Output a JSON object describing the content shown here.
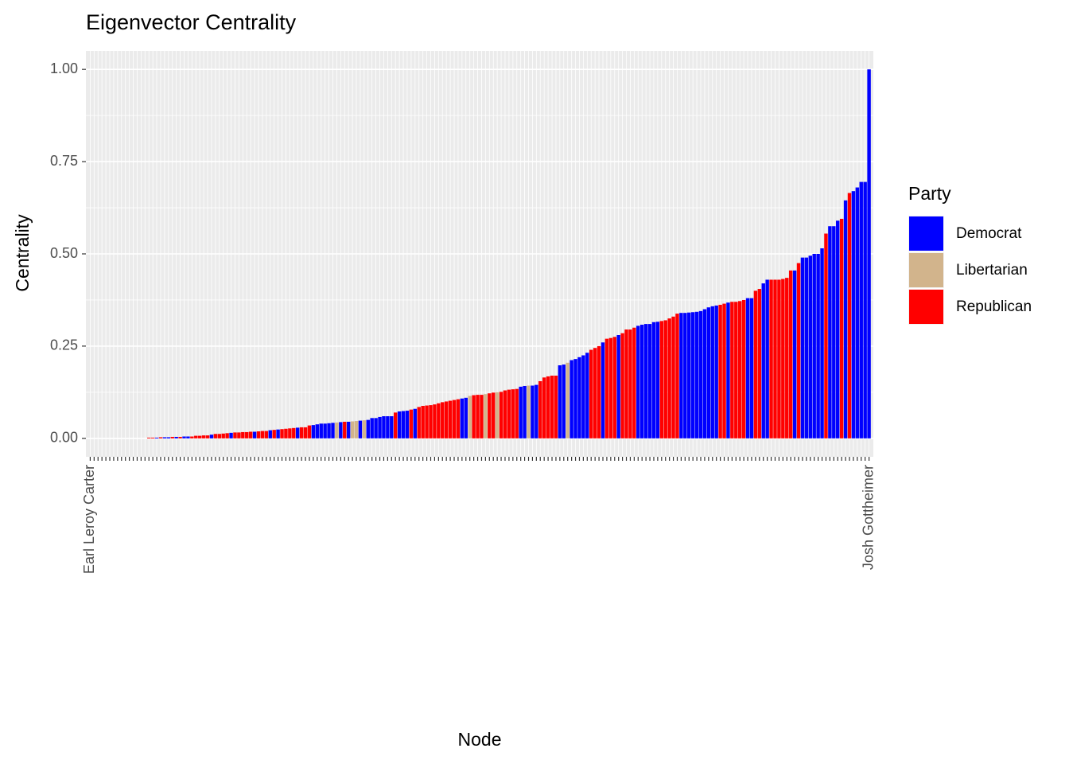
{
  "chart_data": {
    "type": "bar",
    "title": "Eigenvector Centrality",
    "x_label": "Node",
    "y_label": "Centrality",
    "legend_title": "Party",
    "legend": [
      {
        "name": "Democrat",
        "color": "#0000FF"
      },
      {
        "name": "Libertarian",
        "color": "#D2B48C"
      },
      {
        "name": "Republican",
        "color": "#FF0000"
      }
    ],
    "categories": [
      "Earl Leroy Carter",
      null,
      null,
      null,
      null,
      null,
      null,
      null,
      null,
      null,
      null,
      null,
      null,
      null,
      null,
      null,
      null,
      null,
      null,
      null,
      null,
      null,
      null,
      null,
      null,
      null,
      null,
      null,
      null,
      null,
      null,
      null,
      null,
      null,
      null,
      null,
      null,
      null,
      null,
      null,
      null,
      null,
      null,
      null,
      null,
      null,
      null,
      null,
      null,
      null,
      null,
      null,
      null,
      null,
      null,
      null,
      null,
      null,
      null,
      null,
      null,
      null,
      null,
      null,
      null,
      null,
      null,
      null,
      null,
      null,
      null,
      null,
      null,
      null,
      null,
      null,
      null,
      null,
      null,
      null,
      null,
      null,
      null,
      null,
      null,
      null,
      null,
      null,
      null,
      null,
      null,
      null,
      null,
      null,
      null,
      null,
      null,
      null,
      null,
      null,
      null,
      null,
      null,
      null,
      null,
      null,
      null,
      null,
      null,
      null,
      null,
      null,
      null,
      null,
      null,
      null,
      null,
      null,
      null,
      null,
      null,
      null,
      null,
      null,
      null,
      null,
      null,
      null,
      null,
      null,
      null,
      null,
      null,
      null,
      null,
      null,
      null,
      null,
      null,
      null,
      null,
      null,
      null,
      null,
      null,
      null,
      null,
      null,
      null,
      null,
      null,
      null,
      null,
      null,
      null,
      null,
      null,
      null,
      null,
      null,
      null,
      null,
      null,
      null,
      null,
      null,
      null,
      null,
      null,
      null,
      null,
      null,
      null,
      null,
      null,
      null,
      null,
      null,
      null,
      null,
      null,
      null,
      null,
      null,
      null,
      null,
      null,
      null,
      null,
      null,
      null,
      null,
      null,
      null,
      null,
      null,
      null,
      null,
      null,
      "Josh Gottheimer"
    ],
    "values": [
      0,
      0,
      0,
      0,
      0,
      0,
      0,
      0,
      0,
      0,
      0,
      0,
      0,
      0,
      0,
      0.002,
      0.002,
      0.002,
      0.003,
      0.003,
      0.003,
      0.004,
      0.004,
      0.004,
      0.005,
      0.005,
      0.005,
      0.007,
      0.007,
      0.008,
      0.008,
      0.01,
      0.012,
      0.012,
      0.013,
      0.014,
      0.015,
      0.016,
      0.016,
      0.017,
      0.017,
      0.018,
      0.018,
      0.019,
      0.02,
      0.02,
      0.022,
      0.023,
      0.024,
      0.025,
      0.026,
      0.027,
      0.028,
      0.029,
      0.03,
      0.03,
      0.035,
      0.036,
      0.038,
      0.04,
      0.04,
      0.041,
      0.042,
      0.043,
      0.044,
      0.045,
      0.045,
      0.046,
      0.047,
      0.048,
      0.049,
      0.05,
      0.055,
      0.055,
      0.058,
      0.06,
      0.06,
      0.06,
      0.07,
      0.073,
      0.074,
      0.075,
      0.078,
      0.08,
      0.085,
      0.088,
      0.089,
      0.09,
      0.092,
      0.095,
      0.098,
      0.1,
      0.102,
      0.104,
      0.106,
      0.108,
      0.11,
      0.115,
      0.117,
      0.118,
      0.118,
      0.12,
      0.122,
      0.124,
      0.125,
      0.126,
      0.13,
      0.132,
      0.133,
      0.134,
      0.14,
      0.142,
      0.143,
      0.143,
      0.145,
      0.155,
      0.165,
      0.168,
      0.17,
      0.17,
      0.198,
      0.2,
      0.205,
      0.212,
      0.215,
      0.22,
      0.225,
      0.232,
      0.24,
      0.245,
      0.25,
      0.26,
      0.27,
      0.272,
      0.275,
      0.28,
      0.285,
      0.295,
      0.295,
      0.3,
      0.305,
      0.308,
      0.31,
      0.31,
      0.315,
      0.316,
      0.318,
      0.32,
      0.325,
      0.33,
      0.338,
      0.34,
      0.34,
      0.341,
      0.342,
      0.343,
      0.345,
      0.35,
      0.355,
      0.358,
      0.36,
      0.362,
      0.365,
      0.368,
      0.37,
      0.37,
      0.372,
      0.375,
      0.38,
      0.38,
      0.4,
      0.405,
      0.42,
      0.43,
      0.43,
      0.43,
      0.43,
      0.432,
      0.435,
      0.455,
      0.455,
      0.475,
      0.49,
      0.49,
      0.495,
      0.5,
      0.5,
      0.515,
      0.555,
      0.575,
      0.575,
      0.59,
      0.595,
      0.645,
      0.665,
      0.67,
      0.68,
      0.695,
      0.695,
      1.0
    ],
    "party": [
      0,
      2,
      0,
      2,
      2,
      0,
      2,
      0,
      0,
      2,
      0,
      2,
      2,
      0,
      0,
      2,
      2,
      0,
      2,
      0,
      0,
      2,
      0,
      2,
      0,
      0,
      2,
      2,
      2,
      2,
      2,
      0,
      2,
      2,
      2,
      2,
      0,
      2,
      2,
      2,
      2,
      2,
      0,
      2,
      2,
      2,
      0,
      2,
      0,
      2,
      2,
      2,
      2,
      0,
      2,
      2,
      2,
      0,
      0,
      0,
      0,
      0,
      0,
      1,
      0,
      2,
      0,
      1,
      1,
      0,
      1,
      0,
      0,
      0,
      0,
      0,
      0,
      0,
      2,
      0,
      0,
      0,
      2,
      0,
      2,
      2,
      2,
      2,
      2,
      2,
      2,
      2,
      2,
      2,
      2,
      0,
      0,
      1,
      2,
      2,
      2,
      1,
      2,
      2,
      1,
      2,
      2,
      2,
      2,
      2,
      0,
      0,
      1,
      0,
      0,
      2,
      2,
      2,
      2,
      2,
      0,
      0,
      1,
      0,
      0,
      0,
      0,
      0,
      2,
      2,
      2,
      0,
      2,
      2,
      2,
      0,
      2,
      2,
      2,
      2,
      0,
      0,
      0,
      0,
      0,
      0,
      2,
      2,
      2,
      2,
      2,
      0,
      0,
      0,
      0,
      0,
      0,
      0,
      0,
      0,
      0,
      2,
      2,
      0,
      2,
      2,
      2,
      2,
      0,
      0,
      2,
      2,
      0,
      0,
      2,
      2,
      2,
      2,
      2,
      2,
      0,
      2,
      0,
      0,
      0,
      0,
      0,
      0,
      2,
      0,
      0,
      0,
      2,
      0,
      2,
      0,
      0,
      0,
      0,
      0
    ],
    "ylim": [
      -0.05,
      1.05
    ],
    "yticks": [
      {
        "value": 0,
        "label": "0.00"
      },
      {
        "value": 0.25,
        "label": "0.25"
      },
      {
        "value": 0.5,
        "label": "0.50"
      },
      {
        "value": 0.75,
        "label": "0.75"
      },
      {
        "value": 1,
        "label": "1.00"
      }
    ],
    "grid": true
  }
}
